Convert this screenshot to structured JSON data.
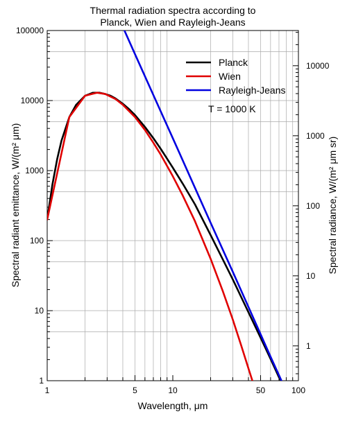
{
  "chart_data": {
    "type": "line",
    "title_lines": [
      "Thermal radiation spectra according to",
      "Planck, Wien and Rayleigh-Jeans"
    ],
    "xlabel": "Wavelength, μm",
    "ylabel_left": "Spectral radiant emittance, W/(m² μm)",
    "ylabel_right": "Spectral radiance, W/(m² μm sr)",
    "x_scale": "log",
    "y_scale": "log",
    "xlim": [
      1,
      100
    ],
    "ylim": [
      1,
      100000
    ],
    "x_ticks": [
      {
        "value": 1,
        "label": "1"
      },
      {
        "value": 5,
        "label": "5"
      },
      {
        "value": 10,
        "label": "10"
      },
      {
        "value": 50,
        "label": "50"
      },
      {
        "value": 100,
        "label": "100"
      }
    ],
    "y_ticks_left": [
      {
        "value": 1,
        "label": "1"
      },
      {
        "value": 10,
        "label": "10"
      },
      {
        "value": 100,
        "label": "100"
      },
      {
        "value": 1000,
        "label": "1000"
      },
      {
        "value": 10000,
        "label": "10000"
      },
      {
        "value": 100000,
        "label": "100000"
      }
    ],
    "y_ticks_right": [
      {
        "value": 1,
        "label": "1"
      },
      {
        "value": 10,
        "label": "10"
      },
      {
        "value": 100,
        "label": "100"
      },
      {
        "value": 1000,
        "label": "1000"
      },
      {
        "value": 10000,
        "label": "10000"
      }
    ],
    "right_axis_factor": 3.14159,
    "grid": true,
    "legend_position": "top-right",
    "annotation": "T = 1000 K",
    "series": [
      {
        "name": "Planck",
        "color": "#000000",
        "points": [
          [
            1,
            200
          ],
          [
            1.1,
            630
          ],
          [
            1.2,
            1450
          ],
          [
            1.3,
            2680
          ],
          [
            1.5,
            5800
          ],
          [
            1.7,
            8700
          ],
          [
            2,
            11700
          ],
          [
            2.3,
            12900
          ],
          [
            2.6,
            12950
          ],
          [
            2.898,
            12400
          ],
          [
            3.2,
            11700
          ],
          [
            3.5,
            10700
          ],
          [
            4,
            9000
          ],
          [
            4.5,
            7500
          ],
          [
            5,
            6200
          ],
          [
            6,
            4200
          ],
          [
            7,
            2900
          ],
          [
            8,
            2050
          ],
          [
            9,
            1480
          ],
          [
            10,
            1100
          ],
          [
            12,
            650
          ],
          [
            15,
            330
          ],
          [
            20,
            120
          ],
          [
            25,
            54
          ],
          [
            30,
            28
          ],
          [
            40,
            9.5
          ],
          [
            50,
            4.1
          ],
          [
            60,
            2.05
          ],
          [
            70,
            1.12
          ],
          [
            72.5,
            1
          ]
        ]
      },
      {
        "name": "Wien",
        "color": "#e00000",
        "points": [
          [
            1,
            200
          ],
          [
            1.5,
            5800
          ],
          [
            2,
            11700
          ],
          [
            2.5,
            12950
          ],
          [
            2.898,
            12400
          ],
          [
            3.5,
            10500
          ],
          [
            4,
            8700
          ],
          [
            5,
            5800
          ],
          [
            6,
            3800
          ],
          [
            7,
            2500
          ],
          [
            8,
            1700
          ],
          [
            10,
            830
          ],
          [
            12,
            440
          ],
          [
            15,
            190
          ],
          [
            20,
            55
          ],
          [
            25,
            19
          ],
          [
            30,
            7.5
          ],
          [
            35,
            3.2
          ],
          [
            40,
            1.5
          ],
          [
            43,
            1
          ]
        ]
      },
      {
        "name": "Rayleigh-Jeans",
        "color": "#0000e0",
        "points": [
          [
            4.12,
            100000
          ],
          [
            5,
            46000
          ],
          [
            7,
            12000
          ],
          [
            10,
            2900
          ],
          [
            15,
            570
          ],
          [
            20,
            180
          ],
          [
            30,
            36
          ],
          [
            40,
            11.3
          ],
          [
            50,
            4.6
          ],
          [
            60,
            2.2
          ],
          [
            70,
            1.2
          ],
          [
            75,
            0.91
          ]
        ]
      }
    ]
  }
}
